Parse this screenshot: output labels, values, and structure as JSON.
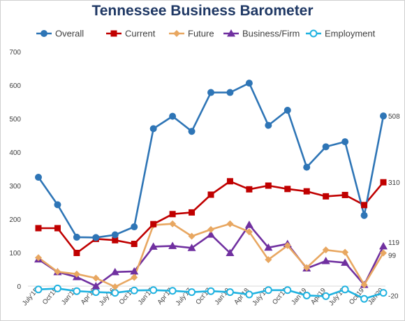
{
  "chart_data": {
    "type": "line",
    "title": "Tennessee Business Barometer",
    "xlabel": "",
    "ylabel": "",
    "ylim": [
      -50,
      700
    ],
    "yticks": [
      0,
      100,
      200,
      300,
      400,
      500,
      600,
      700
    ],
    "grid": false,
    "legend": "top",
    "categories": [
      "July'15",
      "Oct'15",
      "Jan'16",
      "Apr'16",
      "July'16",
      "Oct'16",
      "Jan'17",
      "Apr'17",
      "July'17",
      "Oct'17",
      "Jan'18",
      "Apr'18",
      "July'18",
      "Oct'18",
      "Jan'19",
      "Apr'19",
      "July'19",
      "Oct'19",
      "Jan'20"
    ],
    "x": [
      "July'15",
      "Oct'15",
      "Jan'16",
      "Apr'16",
      "July'16",
      "Oct'16",
      "Jan'17",
      "Apr'17",
      "July'17",
      "Oct'17",
      "Jan'18",
      "Apr'18",
      "July'18",
      "Oct'18",
      "Jan'19",
      "Apr'19",
      "July'19",
      "Oct'19",
      "Jan'20"
    ],
    "series": [
      {
        "name": "Overall",
        "color": "#2e75b6",
        "marker": "circle",
        "values": [
          325,
          243,
          146,
          145,
          153,
          177,
          470,
          507,
          462,
          578,
          578,
          606,
          480,
          525,
          355,
          416,
          431,
          211,
          508
        ],
        "end_label": "508"
      },
      {
        "name": "Current",
        "color": "#c00000",
        "marker": "square",
        "values": [
          173,
          173,
          99,
          141,
          137,
          126,
          185,
          215,
          220,
          273,
          313,
          289,
          300,
          290,
          283,
          268,
          272,
          242,
          310
        ],
        "end_label": "310"
      },
      {
        "name": "Future",
        "color": "#e8a761",
        "marker": "diamond",
        "values": [
          85,
          43,
          36,
          24,
          -2,
          26,
          182,
          186,
          149,
          169,
          186,
          162,
          79,
          121,
          55,
          108,
          101,
          4,
          99
        ],
        "end_label": "99"
      },
      {
        "name": "Business/Firm",
        "color": "#7030a0",
        "marker": "triangle",
        "values": [
          80,
          42,
          27,
          0,
          42,
          44,
          118,
          120,
          114,
          154,
          99,
          183,
          115,
          126,
          53,
          75,
          70,
          4,
          119
        ],
        "end_label": "119"
      },
      {
        "name": "Employment",
        "color": "#1fb2e0",
        "marker": "hollow-circle",
        "values": [
          -10,
          -7,
          -15,
          -18,
          -20,
          -13,
          -12,
          -14,
          -18,
          -15,
          -18,
          -25,
          -12,
          -12,
          -28,
          -30,
          -10,
          -38,
          -20
        ],
        "end_label": "-20"
      }
    ]
  }
}
